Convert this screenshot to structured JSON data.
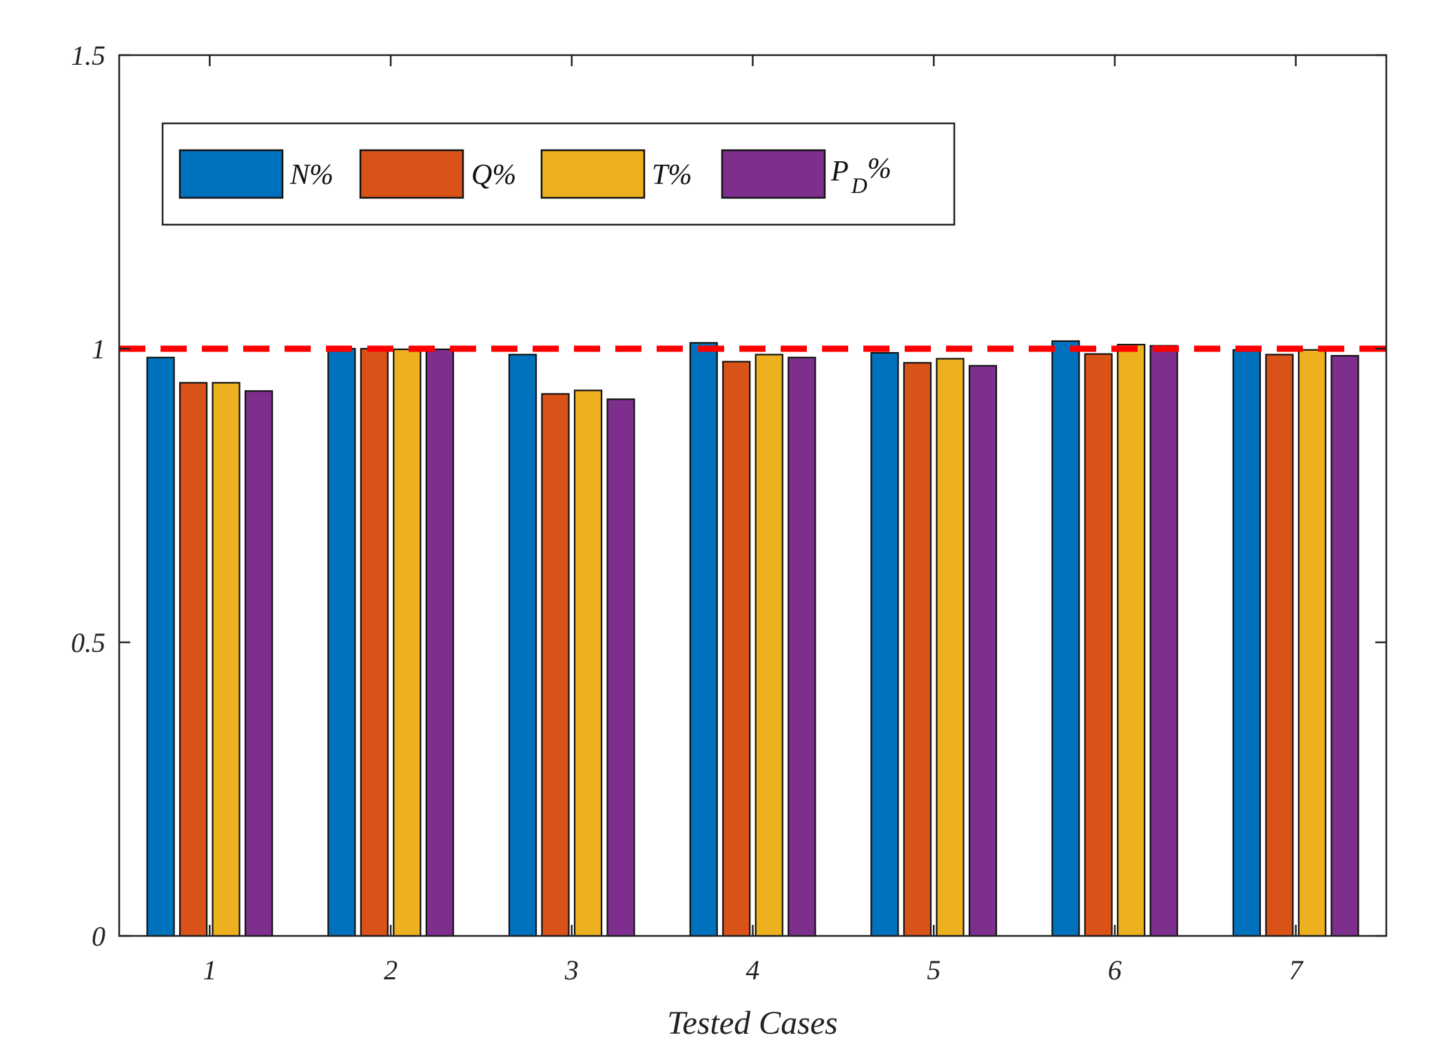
{
  "chart_data": {
    "type": "bar",
    "title": "",
    "xlabel": "Tested Cases",
    "ylabel": "",
    "categories": [
      "1",
      "2",
      "3",
      "4",
      "5",
      "6",
      "7"
    ],
    "ylim": [
      0,
      1.5
    ],
    "yticks": [
      "0",
      "0.5",
      "1",
      "1.5"
    ],
    "reference_line": {
      "value": 1.0,
      "color": "#ff0000",
      "style": "dashed"
    },
    "legend_position": "top-left",
    "series": [
      {
        "name": "N%",
        "color": "#0072BD",
        "values": [
          0.985,
          1.0,
          0.99,
          1.01,
          0.993,
          1.013,
          0.998
        ]
      },
      {
        "name": "Q%",
        "color": "#D95319",
        "values": [
          0.942,
          1.0,
          0.923,
          0.978,
          0.976,
          0.991,
          0.99
        ]
      },
      {
        "name": "T%",
        "color": "#EDB120",
        "values": [
          0.942,
          0.999,
          0.929,
          0.99,
          0.983,
          1.007,
          0.998
        ]
      },
      {
        "name": "P_D%",
        "label_main": "P",
        "label_sub": "D",
        "label_tail": "%",
        "color": "#7E2F8E",
        "values": [
          0.928,
          0.999,
          0.914,
          0.985,
          0.971,
          1.005,
          0.988
        ]
      }
    ]
  }
}
